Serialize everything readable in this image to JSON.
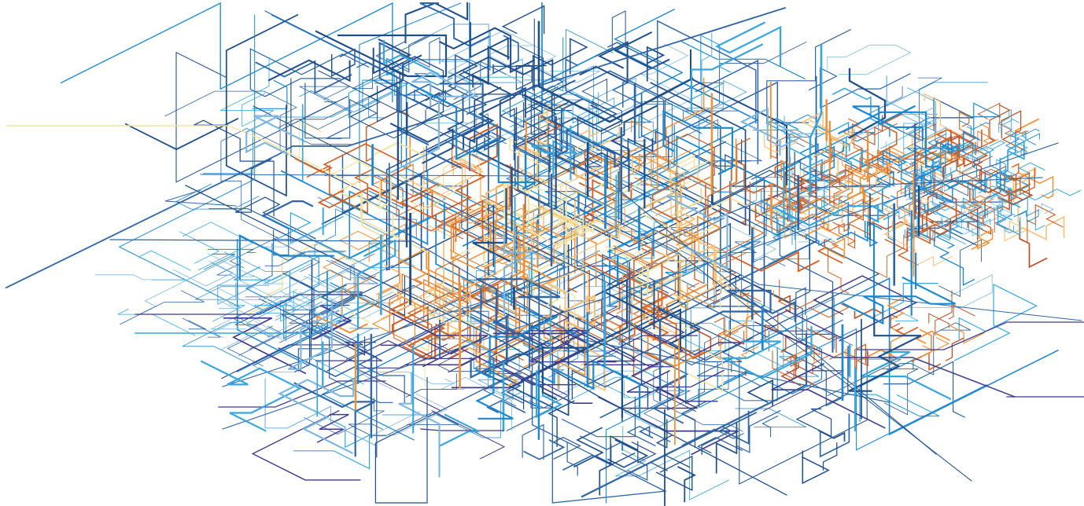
{
  "artwork": {
    "kind": "isometric network line drawing",
    "background_color": "#ffffff",
    "palette": {
      "navy": "#1f4e89",
      "steel_blue": "#2f65a5",
      "bright_blue": "#1e88cf",
      "sky_blue": "#38a6dc",
      "pale_blue": "#7fb8de",
      "purple": "#3f3b8a",
      "light_yellow": "#f3e3a0",
      "pale_orange": "#f6c27a",
      "orange": "#f0913a",
      "burnt_orange": "#d0622a",
      "rust": "#b9532a"
    }
  }
}
